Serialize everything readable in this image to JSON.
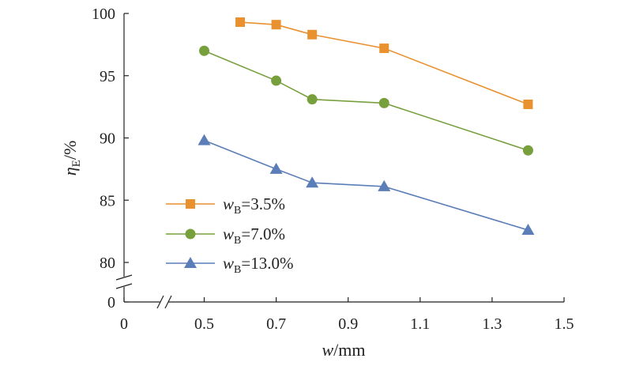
{
  "chart_data": {
    "type": "line",
    "xlabel": {
      "main": "w",
      "unit": "/mm"
    },
    "ylabel": {
      "main": "η",
      "sub": "E",
      "unit": "/%"
    },
    "x_ticks": [
      "0",
      "0.5",
      "0.7",
      "0.9",
      "1.1",
      "1.3",
      "1.5"
    ],
    "y_ticks": [
      "0",
      "80",
      "85",
      "90",
      "95",
      "100"
    ],
    "xlim": [
      0.5,
      1.5
    ],
    "ylim": [
      80,
      100
    ],
    "axis_break": {
      "x": "between 0 and 0.5",
      "y": "between 0 and 80"
    },
    "legend_position": "lower-left",
    "grid": false,
    "series": [
      {
        "name": "wB=3.5%",
        "name_parts": {
          "main": "w",
          "sub": "B",
          "rest": "=3.5%"
        },
        "marker": "square",
        "color": "#E8912E",
        "x": [
          0.6,
          0.7,
          0.8,
          1.0,
          1.4
        ],
        "y": [
          99.3,
          99.1,
          98.3,
          97.2,
          92.7
        ]
      },
      {
        "name": "wB=7.0%",
        "name_parts": {
          "main": "w",
          "sub": "B",
          "rest": "=7.0%"
        },
        "marker": "circle",
        "color": "#77A03C",
        "x": [
          0.5,
          0.7,
          0.8,
          1.0,
          1.4
        ],
        "y": [
          97.0,
          94.6,
          93.1,
          92.8,
          89.0
        ]
      },
      {
        "name": "wB=13.0%",
        "name_parts": {
          "main": "w",
          "sub": "B",
          "rest": "=13.0%"
        },
        "marker": "triangle",
        "color": "#5B7DB8",
        "x": [
          0.5,
          0.7,
          0.8,
          1.0,
          1.4
        ],
        "y": [
          89.8,
          87.5,
          86.4,
          86.1,
          82.6
        ]
      }
    ]
  }
}
